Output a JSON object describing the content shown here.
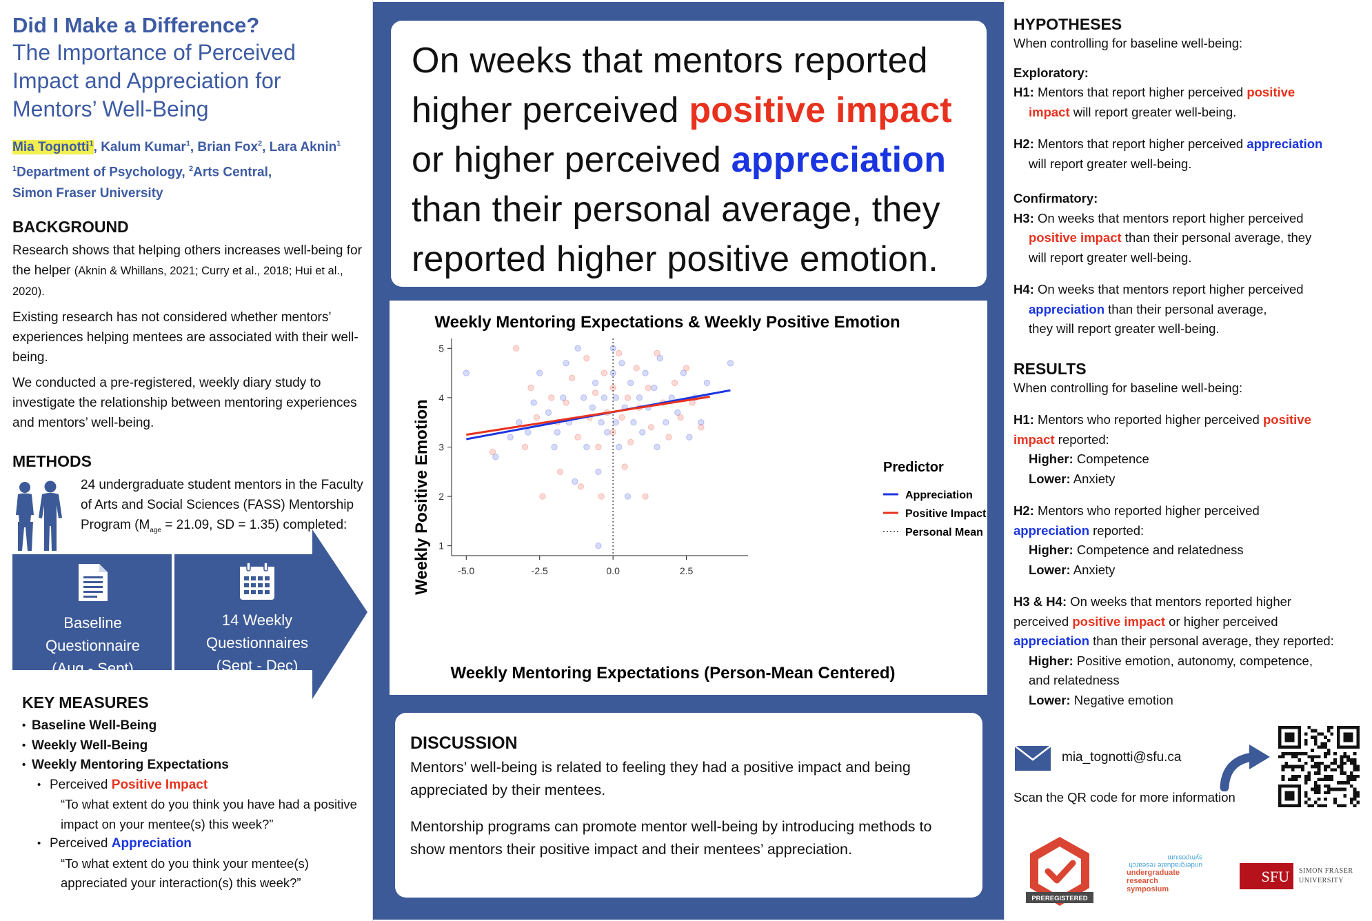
{
  "title": {
    "line1": "Did I Make a Difference?",
    "line2": "The Importance of Perceived",
    "line3": "Impact and Appreciation for",
    "line4": "Mentors’ Well-Being"
  },
  "authors": {
    "a1": "Mia Tognotti",
    "a2": ", Kalum Kumar",
    "a3": ", Brian Fox",
    "a4": ", Lara Aknin",
    "sup1": "1",
    "sup2": "2",
    "aff1": "Department of Psychology, ",
    "aff2": "Arts Central,",
    "aff3": "Simon Fraser University"
  },
  "background": {
    "heading": "BACKGROUND",
    "p1": "Research shows that helping others increases well-being for the helper",
    "p1_cite": "(Aknin & Whillans, 2021; Curry et al., 2018; Hui et al., 2020).",
    "p2": "Existing research has not considered whether mentors’ experiences helping mentees are associated with their well-being.",
    "p3": "We conducted a pre-registered, weekly diary study to investigate the relationship between mentoring experiences and mentors’ well-being."
  },
  "methods": {
    "heading": "METHODS",
    "t1": "24 undergraduate student mentors in the Faculty of Arts and Social Sciences (FASS) Mentorship Program (M",
    "t_sub": "age",
    "t2": " = 21.09, SD = 1.35) completed:",
    "box1": [
      "Baseline",
      "Questionnaire",
      "(Aug - Sept)"
    ],
    "box2": [
      "14 Weekly",
      "Questionnaires",
      "(Sept - Dec)"
    ]
  },
  "key_measures": {
    "heading": "KEY MEASURES",
    "m1": "Baseline Well-Being",
    "m2": "Weekly Well-Being",
    "m3": "Weekly Mentoring Expectations",
    "perceived": "Perceived ",
    "pi": "Positive Impact",
    "q1": "“To what extent do you think you have had a positive impact on your mentee(s) this week?”",
    "ap": "Appreciation",
    "q2": "“To what extent do you think your mentee(s) appreciated your interaction(s) this week?”"
  },
  "headline": {
    "p1": "On weeks that mentors reported higher perceived ",
    "red": "positive impact",
    "p2": " or higher perceived ",
    "blue": "appreciation",
    "p3": " than their personal average, they reported higher positive emotion."
  },
  "discussion": {
    "heading": "DISCUSSION",
    "p1": "Mentors’ well-being is related to feeling they had a positive impact and being appreciated by their mentees.",
    "p2": "Mentorship programs can promote mentor well-being by introducing methods to show mentors their positive impact and their mentees’ appreciation."
  },
  "hypotheses": {
    "heading": "HYPOTHESES",
    "intro": "When controlling for baseline well-being:",
    "exploratory": "Exploratory:",
    "h1_label": "H1:",
    "h1_a": " Mentors that report higher perceived ",
    "h1_red_a": "positive",
    "h1_red_b": "impact",
    "h1_b": " will report greater well-being.",
    "h2_label": "H2:",
    "h2_a": " Mentors that report higher perceived ",
    "h2_blue": "appreciation",
    "h2_b": "will report greater well-being.",
    "confirmatory": "Confirmatory:",
    "h3_label": "H3:",
    "h3_a": " On weeks that mentors report higher perceived",
    "h3_red": "positive impact",
    "h3_b": " than their personal average, they",
    "h3_c": "will report greater well-being.",
    "h4_label": "H4:",
    "h4_a": " On weeks that mentors report higher perceived",
    "h4_blue": "appreciation",
    "h4_b": " than their personal average,",
    "h4_c": "they will report greater well-being."
  },
  "results": {
    "heading": "RESULTS",
    "intro": "When controlling for baseline well-being:",
    "h1_label": "H1:",
    "h1_a": "  Mentors who reported higher perceived ",
    "h1_red_a": "positive",
    "h1_red_b": "impact",
    "h1_b": " reported:",
    "h1_higher": "Higher:",
    "h1_higher_v": " Competence",
    "h1_lower": "Lower:",
    "h1_lower_v": " Anxiety",
    "h2_label": "H2:",
    "h2_a": " Mentors who reported higher perceived",
    "h2_blue": "appreciation",
    "h2_b": " reported:",
    "h2_higher": "Higher:",
    "h2_higher_v": " Competence and relatedness",
    "h2_lower": "Lower:",
    "h2_lower_v": " Anxiety",
    "h34_label": "H3 & H4:",
    "h34_a": " On weeks that mentors reported higher",
    "h34_b": "perceived ",
    "h34_red": "positive impact",
    "h34_c": " or higher perceived",
    "h34_blue": "appreciation",
    "h34_d": " than their personal average, they reported:",
    "h34_higher": "Higher:",
    "h34_higher_v": " Positive emotion, autonomy, competence,",
    "h34_higher_v2": "and relatedness",
    "h34_lower": "Lower:",
    "h34_lower_v": " Negative emotion"
  },
  "contact": {
    "email": "mia_tognotti@sfu.ca",
    "qr_note": "Scan the QR code for more information"
  },
  "logos": {
    "prereg": "PREREGISTERED",
    "urs_mirror": "undergraduate research symposium",
    "urs_1": "undergraduate",
    "urs_2": "research",
    "urs_3": "symposium",
    "sfu": "SFU",
    "sfu_1": "SIMON FRASER",
    "sfu_2": "UNIVERSITY"
  },
  "colors": {
    "title_blue": "#3d5ba3",
    "panel_blue": "#3d5a98",
    "red": "#e8321e",
    "blue": "#1a35e0"
  },
  "chart_data": {
    "type": "scatter",
    "title": "Weekly Mentoring Expectations & Weekly Positive Emotion",
    "xlabel": "Weekly Mentoring Expectations (Person-Mean Centered)",
    "ylabel": "Weekly Positive Emotion",
    "xlim": [
      -5.5,
      4.6
    ],
    "ylim": [
      0.8,
      5.2
    ],
    "xticks": [
      -5.0,
      -2.5,
      0.0,
      2.5
    ],
    "xtick_labels": [
      "-5.0",
      "-2.5",
      "0.0",
      "2.5"
    ],
    "yticks": [
      1,
      2,
      3,
      4,
      5
    ],
    "ytick_labels": [
      "1",
      "2",
      "3",
      "4",
      "5"
    ],
    "legend_title": "Predictor",
    "legend_position": "right",
    "series": [
      {
        "name": "Appreciation",
        "color": "#1a35e0",
        "fit_line": {
          "x": [
            -5.0,
            4.0
          ],
          "y": [
            3.16,
            4.15
          ]
        },
        "points": [
          [
            -5.0,
            4.5
          ],
          [
            -3.2,
            3.5
          ],
          [
            -2.9,
            3.3
          ],
          [
            -2.5,
            4.5
          ],
          [
            -2.2,
            3.7
          ],
          [
            -2.0,
            3.0
          ],
          [
            -1.7,
            4.0
          ],
          [
            -1.6,
            4.7
          ],
          [
            -1.5,
            3.5
          ],
          [
            -1.3,
            2.3
          ],
          [
            -1.2,
            5.0
          ],
          [
            -1.0,
            4.0
          ],
          [
            -0.9,
            3.0
          ],
          [
            -0.7,
            3.8
          ],
          [
            -0.6,
            4.3
          ],
          [
            -0.5,
            2.5
          ],
          [
            -0.5,
            1.0
          ],
          [
            -0.4,
            3.5
          ],
          [
            -0.3,
            4.0
          ],
          [
            -0.2,
            3.3
          ],
          [
            0.0,
            5.0
          ],
          [
            0.0,
            4.5
          ],
          [
            0.1,
            4.0
          ],
          [
            0.1,
            3.5
          ],
          [
            0.2,
            3.0
          ],
          [
            0.3,
            4.7
          ],
          [
            0.4,
            3.8
          ],
          [
            0.5,
            2.0
          ],
          [
            0.6,
            4.3
          ],
          [
            0.7,
            3.5
          ],
          [
            0.9,
            4.0
          ],
          [
            1.0,
            3.3
          ],
          [
            1.1,
            4.5
          ],
          [
            1.2,
            3.8
          ],
          [
            1.4,
            4.2
          ],
          [
            1.5,
            3.0
          ],
          [
            1.6,
            4.8
          ],
          [
            1.8,
            3.5
          ],
          [
            2.0,
            4.0
          ],
          [
            2.2,
            3.7
          ],
          [
            2.4,
            4.5
          ],
          [
            2.6,
            3.2
          ],
          [
            2.8,
            4.0
          ],
          [
            3.0,
            3.5
          ],
          [
            3.2,
            4.3
          ],
          [
            4.0,
            4.7
          ],
          [
            -4.0,
            2.8
          ],
          [
            -3.5,
            3.2
          ],
          [
            -2.7,
            3.9
          ],
          [
            -1.9,
            3.3
          ]
        ]
      },
      {
        "name": "Positive Impact",
        "color": "#e8321e",
        "fit_line": {
          "x": [
            -5.0,
            3.3
          ],
          "y": [
            3.25,
            4.02
          ]
        },
        "points": [
          [
            -3.3,
            5.0
          ],
          [
            -2.8,
            4.2
          ],
          [
            -2.6,
            3.6
          ],
          [
            -2.4,
            2.0
          ],
          [
            -2.1,
            4.0
          ],
          [
            -1.9,
            3.5
          ],
          [
            -1.8,
            2.5
          ],
          [
            -1.6,
            3.9
          ],
          [
            -1.4,
            4.4
          ],
          [
            -1.2,
            3.2
          ],
          [
            -1.1,
            2.2
          ],
          [
            -0.9,
            4.8
          ],
          [
            -0.8,
            3.6
          ],
          [
            -0.6,
            4.1
          ],
          [
            -0.5,
            3.0
          ],
          [
            -0.4,
            2.0
          ],
          [
            -0.3,
            4.5
          ],
          [
            -0.2,
            3.7
          ],
          [
            0.0,
            4.2
          ],
          [
            0.0,
            3.3
          ],
          [
            0.2,
            4.9
          ],
          [
            0.3,
            3.6
          ],
          [
            0.4,
            2.6
          ],
          [
            0.5,
            4.0
          ],
          [
            0.6,
            3.1
          ],
          [
            0.8,
            4.6
          ],
          [
            0.9,
            3.8
          ],
          [
            1.1,
            2.0
          ],
          [
            1.2,
            4.2
          ],
          [
            1.3,
            3.4
          ],
          [
            1.5,
            4.9
          ],
          [
            1.7,
            3.9
          ],
          [
            1.9,
            3.2
          ],
          [
            2.1,
            4.3
          ],
          [
            2.3,
            3.6
          ],
          [
            2.5,
            4.6
          ],
          [
            2.7,
            3.9
          ],
          [
            3.0,
            3.4
          ],
          [
            -3.0,
            3.0
          ],
          [
            -4.1,
            2.9
          ]
        ]
      },
      {
        "name": "Personal Mean",
        "color": "#333333",
        "vline_x": 0.0
      }
    ]
  }
}
